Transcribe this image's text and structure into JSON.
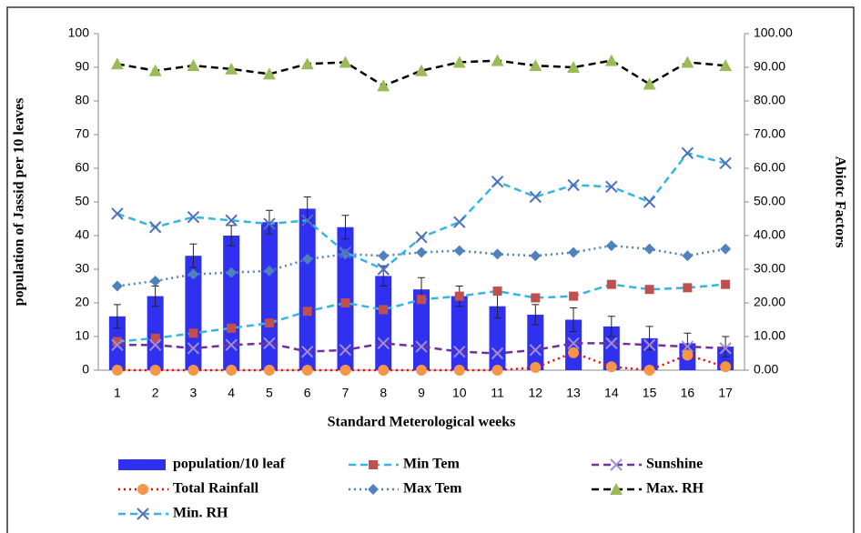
{
  "chart_data": {
    "type": "bar_line",
    "y_label": "population of Jassid per 10 leaves",
    "y2_label": "Abiotc Factors",
    "x_label": "Standard Meterological weeks",
    "categories": [
      "1",
      "2",
      "3",
      "4",
      "5",
      "6",
      "7",
      "8",
      "9",
      "10",
      "11",
      "12",
      "13",
      "14",
      "15",
      "16",
      "17"
    ],
    "ylim": [
      0,
      100
    ],
    "yticks": [
      0,
      10,
      20,
      30,
      40,
      50,
      60,
      70,
      80,
      90,
      100
    ],
    "y2lim": [
      0,
      100
    ],
    "y2ticks": [
      {
        "value": 0,
        "label": "0.00"
      },
      {
        "value": 10,
        "label": "10.00"
      },
      {
        "value": 20,
        "label": "20.00"
      },
      {
        "value": 30,
        "label": "30.00"
      },
      {
        "value": 40,
        "label": "40.00"
      },
      {
        "value": 50,
        "label": "50.00"
      },
      {
        "value": 60,
        "label": "60.00"
      },
      {
        "value": 70,
        "label": "70.00"
      },
      {
        "value": 80,
        "label": "80.00"
      },
      {
        "value": 90,
        "label": "90.00"
      },
      {
        "value": 100,
        "label": "100.00"
      }
    ],
    "series": [
      {
        "name": "population/10 leaf",
        "type": "bar",
        "axis": "y",
        "color": "#3030f0",
        "values": [
          16,
          22,
          34,
          40,
          44,
          48,
          42.5,
          28,
          24,
          22,
          19,
          16.5,
          15,
          13,
          9.5,
          8,
          7
        ],
        "errors": [
          3.5,
          3,
          3.5,
          3,
          3.5,
          3.5,
          3.5,
          3,
          3.5,
          3,
          3.5,
          3,
          3.5,
          3,
          3.5,
          3,
          3
        ]
      },
      {
        "name": "Min Tem",
        "type": "line",
        "axis": "y2",
        "color": "#33b5e5",
        "marker_color": "#c0504d",
        "dash": "dashed",
        "marker": "square",
        "values": [
          8.5,
          9.5,
          11,
          12.5,
          14,
          17.5,
          20,
          18,
          21,
          22,
          23.5,
          21.5,
          22,
          25.5,
          24,
          24.5,
          25.5
        ]
      },
      {
        "name": "Sunshine",
        "type": "line",
        "axis": "y2",
        "color": "#7030a0",
        "marker_color": "#9f8fd0",
        "dash": "dashed",
        "marker": "x",
        "values": [
          7.5,
          7.5,
          6.5,
          7.5,
          8,
          5.5,
          6,
          8,
          7,
          5.5,
          5,
          6,
          8,
          8,
          7.5,
          7,
          6.5
        ]
      },
      {
        "name": "Total Rainfall",
        "type": "line",
        "axis": "y2",
        "color": "#ff0000",
        "marker_color": "#f79646",
        "dash": "dotted",
        "marker": "circle",
        "values": [
          0,
          0,
          0,
          0,
          0,
          0,
          0,
          0,
          0,
          0,
          0,
          0.8,
          5.2,
          1,
          0,
          4.5,
          1
        ]
      },
      {
        "name": "Max Tem",
        "type": "line",
        "axis": "y2",
        "color": "#4f81bd",
        "marker_color": "#4f81bd",
        "dash": "dotted",
        "marker": "diamond",
        "values": [
          25,
          26.5,
          28.5,
          29,
          29.5,
          33,
          34.5,
          34,
          35,
          35.5,
          34.5,
          34,
          35,
          37,
          36,
          34,
          36
        ]
      },
      {
        "name": "Max. RH",
        "type": "line",
        "axis": "y2",
        "color": "#000000",
        "marker_color": "#9bbb59",
        "dash": "dashed",
        "marker": "triangle",
        "values": [
          91,
          89,
          90.5,
          89.5,
          88,
          91,
          91.5,
          84.5,
          89,
          91.5,
          92,
          90.5,
          90,
          92,
          85,
          91.5,
          90.5
        ]
      },
      {
        "name": "Min. RH",
        "type": "line",
        "axis": "y2",
        "color": "#33b5e5",
        "marker_color": "#4f6fbd",
        "dash": "dashed",
        "marker": "x",
        "values": [
          46.5,
          42.5,
          45.5,
          44.5,
          43.5,
          44.5,
          35,
          30,
          39.5,
          44,
          56,
          51.5,
          55,
          54.5,
          50,
          64.5,
          61.5
        ]
      }
    ]
  }
}
